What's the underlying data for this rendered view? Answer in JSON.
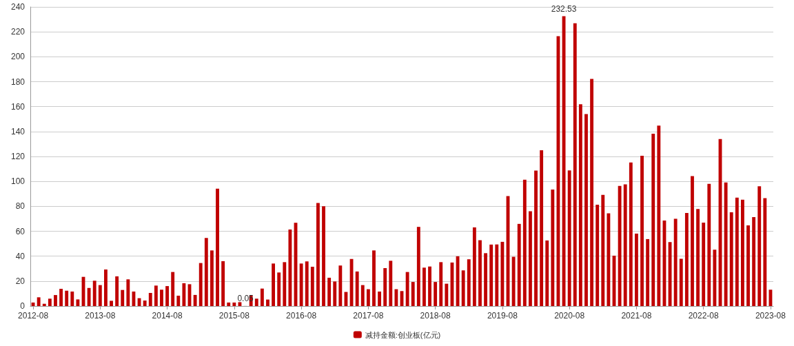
{
  "chart_data": {
    "type": "bar",
    "categories": [
      "2012-08",
      null,
      null,
      null,
      null,
      null,
      null,
      null,
      null,
      null,
      null,
      null,
      "2013-08",
      null,
      null,
      null,
      null,
      null,
      null,
      null,
      null,
      null,
      null,
      null,
      "2014-08",
      null,
      null,
      null,
      null,
      null,
      null,
      null,
      null,
      null,
      null,
      null,
      "2015-08",
      null,
      null,
      null,
      null,
      null,
      null,
      null,
      null,
      null,
      null,
      null,
      "2016-08",
      null,
      null,
      null,
      null,
      null,
      null,
      null,
      null,
      null,
      null,
      null,
      "2017-08",
      null,
      null,
      null,
      null,
      null,
      null,
      null,
      null,
      null,
      null,
      null,
      "2018-08",
      null,
      null,
      null,
      null,
      null,
      null,
      null,
      null,
      null,
      null,
      null,
      "2019-08",
      null,
      null,
      null,
      null,
      null,
      null,
      null,
      null,
      null,
      null,
      null,
      "2020-08",
      null,
      null,
      null,
      null,
      null,
      null,
      null,
      null,
      null,
      null,
      null,
      "2021-08",
      null,
      null,
      null,
      null,
      null,
      null,
      null,
      null,
      null,
      null,
      null,
      "2022-08",
      null,
      null,
      null,
      null,
      null,
      null,
      null,
      null,
      null,
      null,
      null,
      "2023-08"
    ],
    "series": [
      {
        "name": "减持金额:创业板(亿元)",
        "color": "#c00000",
        "values": [
          2.8,
          7,
          1.8,
          5.9,
          8.8,
          13.8,
          12.3,
          11.6,
          5.3,
          23.4,
          14.5,
          20.3,
          16.8,
          29.3,
          4.2,
          23.8,
          12.9,
          21.4,
          11.6,
          6.3,
          4.4,
          10.5,
          16.4,
          13.1,
          16.0,
          27.3,
          8.3,
          18.3,
          17.5,
          8.9,
          34.5,
          54.6,
          44.6,
          94.1,
          36.0,
          2.8,
          2.8,
          3.1,
          0.05,
          8.5,
          5.9,
          14.0,
          5.2,
          34.1,
          26.9,
          35.2,
          61.4,
          66.8,
          34.1,
          35.8,
          31.5,
          82.7,
          80.1,
          22.7,
          19.7,
          32.5,
          11.3,
          37.8,
          27.7,
          16.8,
          13.5,
          44.6,
          11.6,
          30.4,
          36.3,
          13.5,
          12.0,
          27.3,
          19.3,
          63.5,
          30.8,
          31.7,
          19.3,
          35.2,
          17.9,
          34.9,
          39.9,
          28.6,
          37.5,
          63.1,
          52.8,
          42.4,
          49.3,
          49.4,
          51.5,
          88.2,
          39.5,
          65.9,
          101.3,
          76.0,
          108.6,
          125.0,
          52.6,
          93.4,
          216.5,
          232.53,
          108.8,
          226.8,
          161.9,
          154.0,
          182.2,
          81.3,
          89.2,
          74.4,
          40.4,
          96.3,
          97.6,
          115.1,
          58.1,
          120.6,
          53.7,
          138.2,
          144.7,
          68.6,
          51.3,
          70.0,
          37.9,
          74.6,
          104.2,
          77.8,
          66.9,
          98.0,
          45.2,
          134.0,
          99.1,
          75.2,
          86.9,
          85.3,
          64.7,
          71.3,
          96.1,
          86.6,
          13.1
        ],
        "value_labels": [
          null,
          null,
          null,
          null,
          null,
          null,
          null,
          null,
          null,
          null,
          null,
          null,
          null,
          null,
          null,
          null,
          null,
          null,
          null,
          null,
          null,
          null,
          null,
          null,
          null,
          null,
          null,
          null,
          null,
          null,
          null,
          null,
          null,
          null,
          null,
          null,
          null,
          null,
          "0.05",
          null,
          null,
          null,
          null,
          null,
          null,
          null,
          null,
          null,
          null,
          null,
          null,
          null,
          null,
          null,
          null,
          null,
          null,
          null,
          null,
          null,
          null,
          null,
          null,
          null,
          null,
          null,
          null,
          null,
          null,
          null,
          null,
          null,
          null,
          null,
          null,
          null,
          null,
          null,
          null,
          null,
          null,
          null,
          null,
          null,
          null,
          null,
          null,
          null,
          null,
          null,
          null,
          null,
          null,
          null,
          null,
          "232.53",
          null,
          null,
          null,
          null,
          null,
          null,
          null,
          null,
          null,
          null,
          null,
          null,
          null,
          null,
          null,
          null,
          null,
          null,
          null,
          null,
          null,
          null,
          null,
          null,
          null,
          null,
          null,
          null,
          null,
          null,
          null,
          null,
          null,
          null,
          null,
          null,
          null
        ]
      }
    ],
    "ylim": [
      0,
      240
    ],
    "yticks": [
      0,
      20,
      40,
      60,
      80,
      100,
      120,
      140,
      160,
      180,
      200,
      220,
      240
    ],
    "grid": "y",
    "legend": "bottom"
  }
}
